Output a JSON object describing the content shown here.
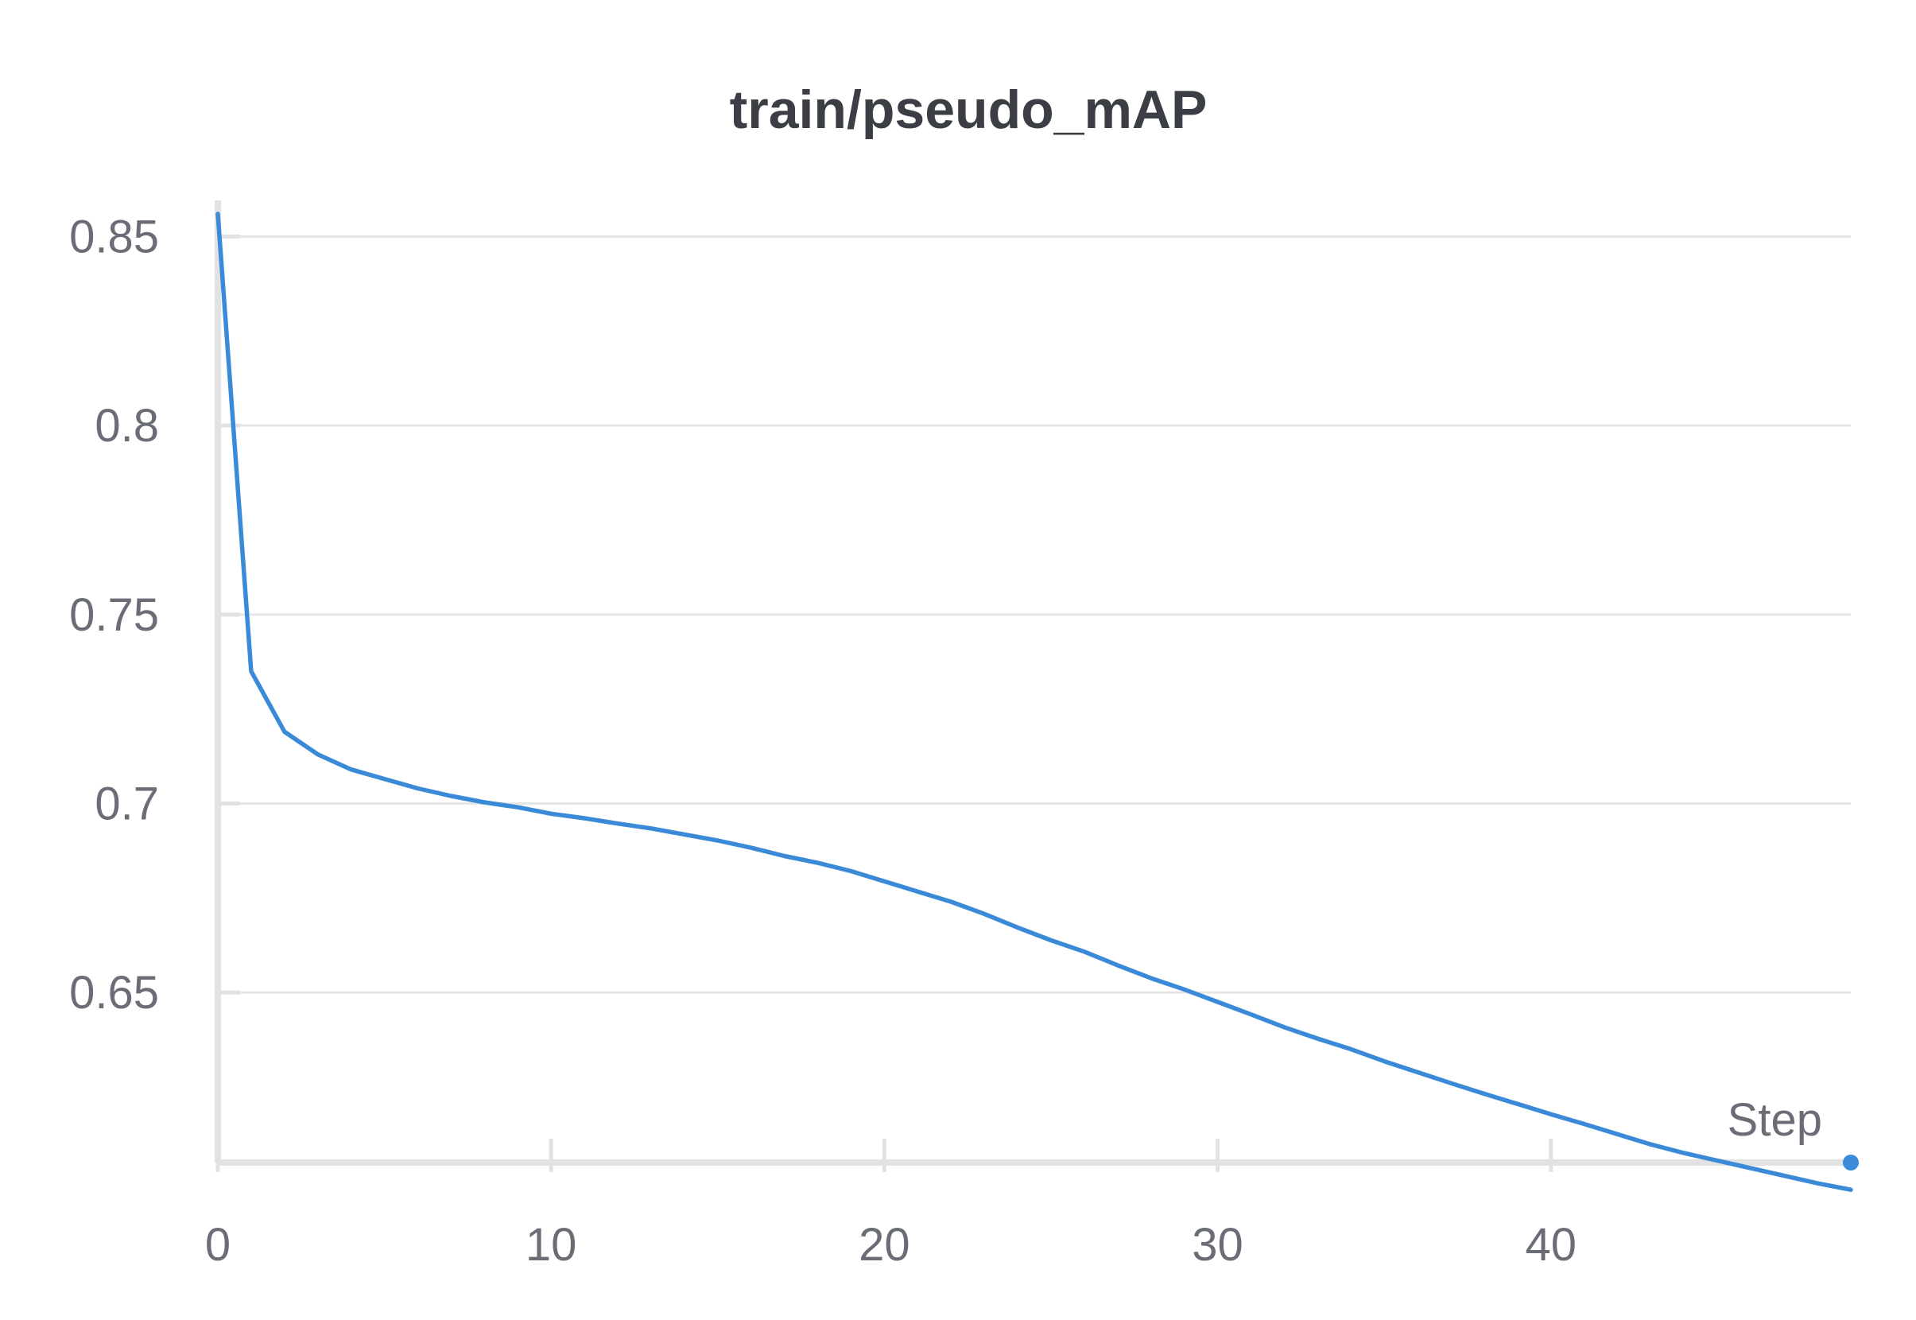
{
  "chart_data": {
    "type": "line",
    "title": "train/pseudo_mAP",
    "xlabel": "Step",
    "ylabel": "",
    "xlim": [
      0,
      49
    ],
    "ylim": [
      0.605,
      0.86
    ],
    "xticks": [
      0,
      10,
      20,
      30,
      40
    ],
    "yticks": [
      0.65,
      0.7,
      0.75,
      0.8,
      0.85
    ],
    "grid": true,
    "colors": {
      "series": "#3a8ad8"
    },
    "series": [
      {
        "x": [
          0,
          1,
          2,
          3,
          4,
          5,
          6,
          7,
          8,
          9,
          10,
          11,
          12,
          13,
          14,
          15,
          16,
          17,
          18,
          19,
          20,
          21,
          22,
          23,
          24,
          25,
          26,
          27,
          28,
          29,
          30,
          31,
          32,
          33,
          34,
          35,
          36,
          37,
          38,
          39,
          40,
          41,
          42,
          43,
          44,
          45,
          46,
          47,
          48,
          49
        ],
        "values": [
          0.856,
          0.735,
          0.719,
          0.713,
          0.709,
          0.7065,
          0.704,
          0.702,
          0.7003,
          0.699,
          0.6973,
          0.6961,
          0.6947,
          0.6934,
          0.6918,
          0.6902,
          0.6883,
          0.6861,
          0.6843,
          0.6821,
          0.6794,
          0.6767,
          0.674,
          0.6708,
          0.6672,
          0.6638,
          0.6608,
          0.6572,
          0.6538,
          0.6508,
          0.6475,
          0.6442,
          0.6408,
          0.6378,
          0.635,
          0.6318,
          0.6289,
          0.626,
          0.6232,
          0.6205,
          0.6178,
          0.6152,
          0.6125,
          0.6098,
          0.6075,
          0.6055,
          0.6035,
          0.6015,
          0.5995,
          0.5978
        ]
      }
    ]
  }
}
